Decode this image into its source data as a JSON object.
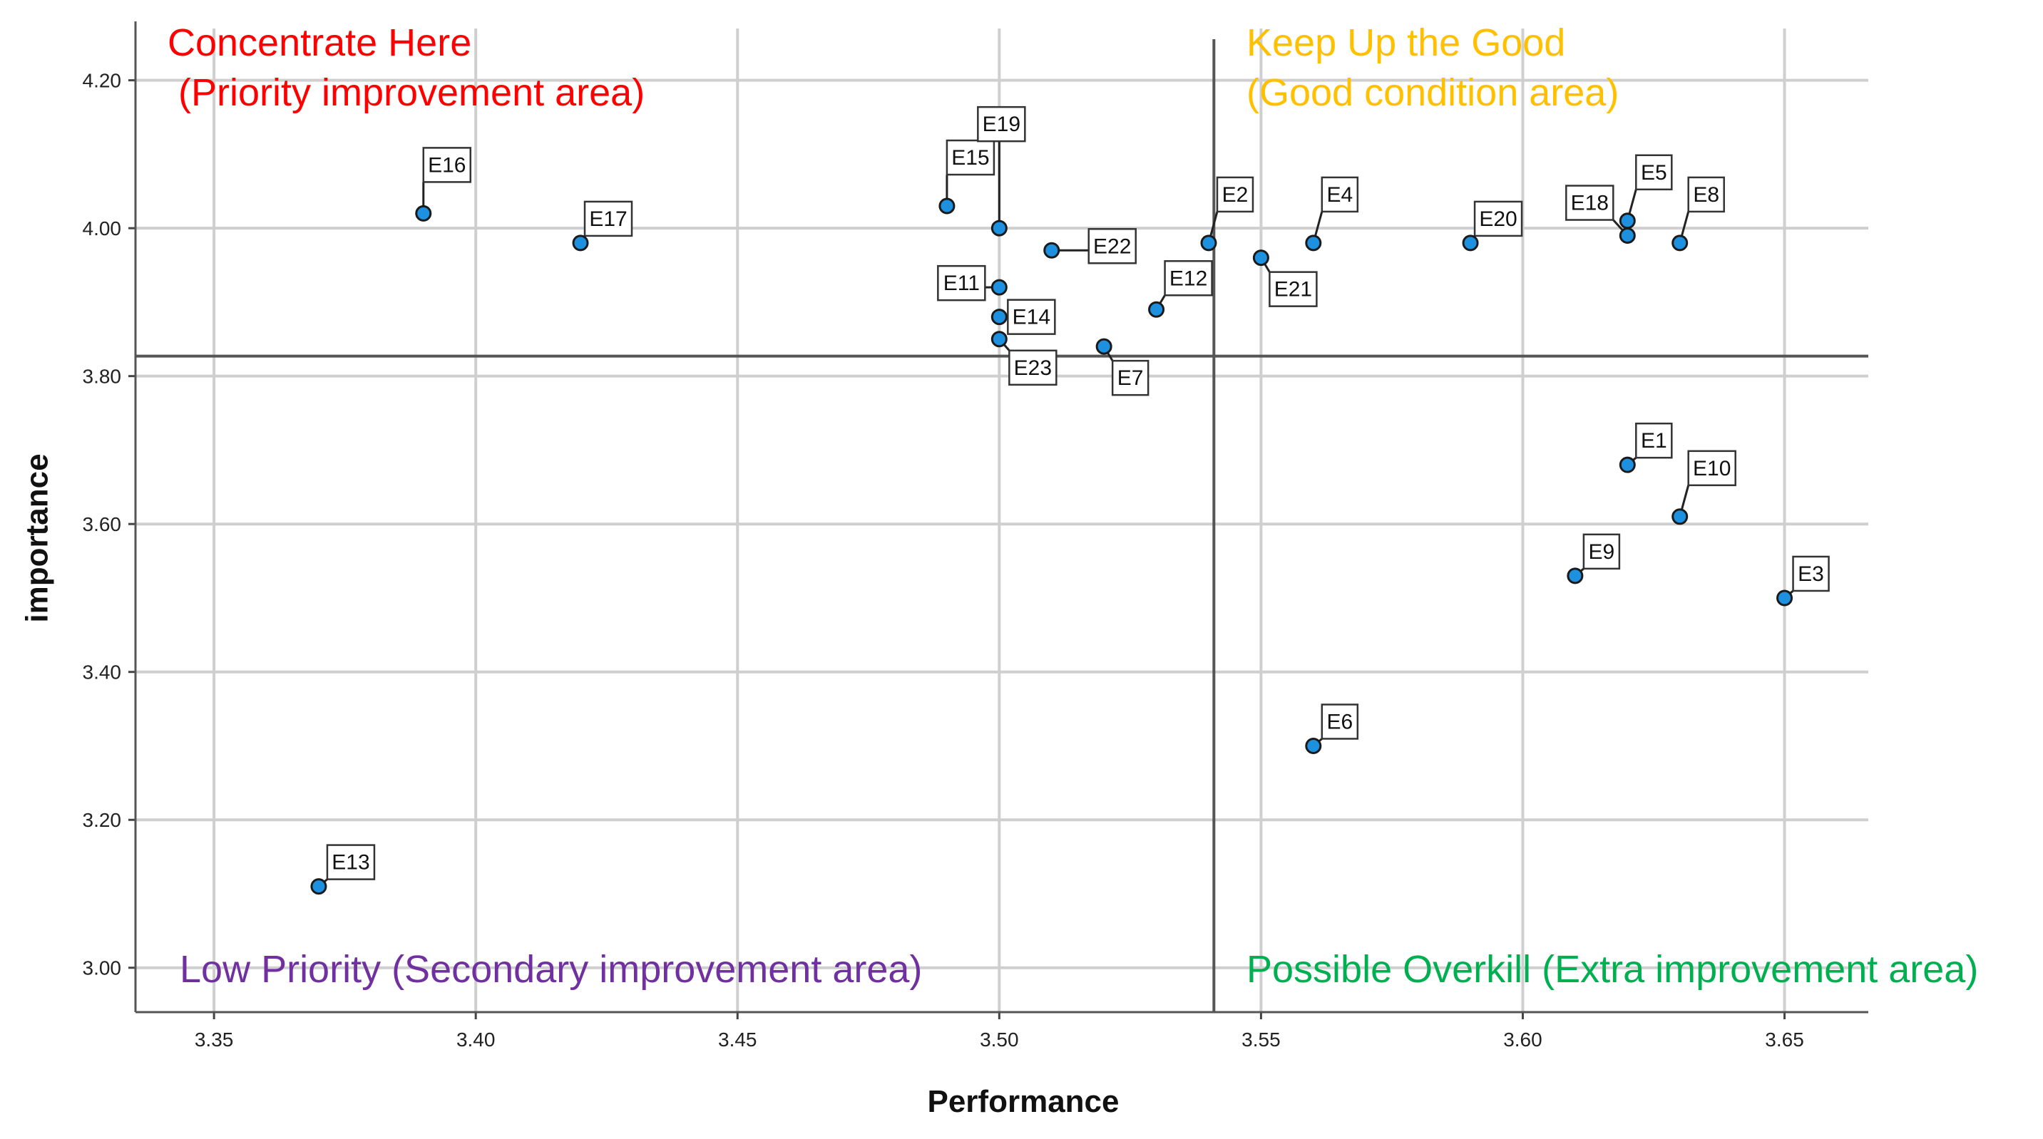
{
  "chart_data": {
    "type": "scatter",
    "xlabel": "Performance",
    "ylabel": "importance",
    "xlim": [
      3.335,
      3.666
    ],
    "ylim": [
      2.94,
      4.27
    ],
    "x_ticks": [
      "3.35",
      "3.40",
      "3.45",
      "3.50",
      "3.55",
      "3.60",
      "3.65"
    ],
    "y_ticks": [
      "3.00",
      "3.20",
      "3.40",
      "3.60",
      "3.80",
      "4.00",
      "4.20"
    ],
    "grid": true,
    "reference_lines": {
      "x_mean": 3.541,
      "y_mean": 3.827
    },
    "quadrant_labels": [
      {
        "text": "Concentrate Here",
        "color": "#ff0000",
        "position": "top-left"
      },
      {
        "text": " (Priority improvement area)",
        "color": "#ff0000",
        "position": "top-left"
      },
      {
        "text": "Keep Up the Good",
        "color": "#ffc000",
        "position": "top-right"
      },
      {
        "text": "(Good condition area)",
        "color": "#ffc000",
        "position": "top-right"
      },
      {
        "text": "Low Priority (Secondary improvement area)",
        "color": "#7030a0",
        "position": "bottom-left"
      },
      {
        "text": "Possible Overkill (Extra improvement area)",
        "color": "#00b050",
        "position": "bottom-right"
      }
    ],
    "point_color": "#1e90e0",
    "points": [
      {
        "label": "E1",
        "x": 3.62,
        "y": 3.68
      },
      {
        "label": "E2",
        "x": 3.54,
        "y": 3.98
      },
      {
        "label": "E3",
        "x": 3.65,
        "y": 3.5
      },
      {
        "label": "E4",
        "x": 3.56,
        "y": 3.98
      },
      {
        "label": "E5",
        "x": 3.62,
        "y": 4.01
      },
      {
        "label": "E6",
        "x": 3.56,
        "y": 3.3
      },
      {
        "label": "E7",
        "x": 3.52,
        "y": 3.84
      },
      {
        "label": "E8",
        "x": 3.63,
        "y": 3.98
      },
      {
        "label": "E9",
        "x": 3.61,
        "y": 3.53
      },
      {
        "label": "E10",
        "x": 3.63,
        "y": 3.61
      },
      {
        "label": "E11",
        "x": 3.5,
        "y": 3.92
      },
      {
        "label": "E12",
        "x": 3.53,
        "y": 3.89
      },
      {
        "label": "E13",
        "x": 3.37,
        "y": 3.11
      },
      {
        "label": "E14",
        "x": 3.5,
        "y": 3.88
      },
      {
        "label": "E15",
        "x": 3.49,
        "y": 4.03
      },
      {
        "label": "E16",
        "x": 3.39,
        "y": 4.02
      },
      {
        "label": "E17",
        "x": 3.42,
        "y": 3.98
      },
      {
        "label": "E18",
        "x": 3.62,
        "y": 3.99
      },
      {
        "label": "E19",
        "x": 3.5,
        "y": 4.0
      },
      {
        "label": "E20",
        "x": 3.59,
        "y": 3.98
      },
      {
        "label": "E21",
        "x": 3.55,
        "y": 3.96
      },
      {
        "label": "E22",
        "x": 3.51,
        "y": 3.97
      },
      {
        "label": "E23",
        "x": 3.5,
        "y": 3.85
      }
    ]
  }
}
